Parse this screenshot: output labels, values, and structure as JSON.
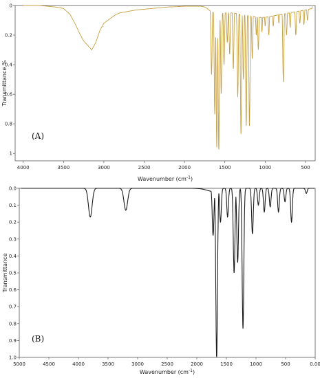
{
  "chart_data": [
    {
      "type": "line",
      "panel_label": "(A)",
      "xlabel_main": "Wavenumber (cm",
      "xlabel_sup": "-1",
      "xlabel_end": ")",
      "ylabel": "Transmittance %",
      "xlim": [
        4100,
        380
      ],
      "ylim": [
        0,
        1.05
      ],
      "x_reversed": true,
      "y_inverted": true,
      "grid": false,
      "color": "#c8a040",
      "xticks": [
        4000,
        3500,
        3000,
        2500,
        2000,
        1500,
        1000,
        500
      ],
      "xtick_labels": [
        "4000",
        "3500",
        "3000",
        "2500",
        "2000",
        "1500",
        "1000",
        "500"
      ],
      "yticks": [
        0,
        0.2,
        0.4,
        0.6,
        0.8,
        1
      ],
      "ytick_labels": [
        "0",
        "0.2",
        "0.4",
        "0.6",
        "0.8",
        "1"
      ],
      "baseline": [
        [
          4000,
          0.0
        ],
        [
          3800,
          0.0
        ],
        [
          3600,
          0.01
        ],
        [
          3500,
          0.02
        ],
        [
          3420,
          0.06
        ],
        [
          3350,
          0.13
        ],
        [
          3300,
          0.19
        ],
        [
          3250,
          0.24
        ],
        [
          3200,
          0.27
        ],
        [
          3150,
          0.3
        ],
        [
          3100,
          0.25
        ],
        [
          3050,
          0.17
        ],
        [
          3000,
          0.12
        ],
        [
          2950,
          0.1
        ],
        [
          2900,
          0.08
        ],
        [
          2850,
          0.06
        ],
        [
          2800,
          0.05
        ],
        [
          2700,
          0.04
        ],
        [
          2600,
          0.03
        ],
        [
          2500,
          0.025
        ],
        [
          2400,
          0.02
        ],
        [
          2300,
          0.015
        ],
        [
          2200,
          0.01
        ],
        [
          2100,
          0.008
        ],
        [
          2000,
          0.005
        ],
        [
          1900,
          0.005
        ],
        [
          1800,
          0.005
        ],
        [
          1750,
          0.01
        ],
        [
          1720,
          0.02
        ],
        [
          1700,
          0.03
        ],
        [
          1600,
          0.06
        ],
        [
          1500,
          0.05
        ],
        [
          1400,
          0.05
        ],
        [
          1300,
          0.06
        ],
        [
          1200,
          0.07
        ],
        [
          1100,
          0.08
        ],
        [
          1000,
          0.08
        ],
        [
          900,
          0.07
        ],
        [
          800,
          0.06
        ],
        [
          700,
          0.05
        ],
        [
          600,
          0.04
        ],
        [
          500,
          0.03
        ],
        [
          420,
          0.02
        ]
      ],
      "peaks": [
        {
          "x": 1665,
          "y": 0.47
        },
        {
          "x": 1625,
          "y": 0.74
        },
        {
          "x": 1600,
          "y": 0.96
        },
        {
          "x": 1575,
          "y": 0.98
        },
        {
          "x": 1545,
          "y": 0.6
        },
        {
          "x": 1510,
          "y": 0.4
        },
        {
          "x": 1470,
          "y": 0.25
        },
        {
          "x": 1440,
          "y": 0.33
        },
        {
          "x": 1395,
          "y": 0.43
        },
        {
          "x": 1340,
          "y": 0.62
        },
        {
          "x": 1300,
          "y": 0.87
        },
        {
          "x": 1270,
          "y": 0.5
        },
        {
          "x": 1235,
          "y": 0.82
        },
        {
          "x": 1195,
          "y": 0.82
        },
        {
          "x": 1160,
          "y": 0.36
        },
        {
          "x": 1110,
          "y": 0.2
        },
        {
          "x": 1085,
          "y": 0.3
        },
        {
          "x": 1040,
          "y": 0.18
        },
        {
          "x": 1000,
          "y": 0.14
        },
        {
          "x": 955,
          "y": 0.2
        },
        {
          "x": 900,
          "y": 0.14
        },
        {
          "x": 830,
          "y": 0.12
        },
        {
          "x": 775,
          "y": 0.52
        },
        {
          "x": 735,
          "y": 0.2
        },
        {
          "x": 690,
          "y": 0.15
        },
        {
          "x": 620,
          "y": 0.2
        },
        {
          "x": 570,
          "y": 0.12
        },
        {
          "x": 520,
          "y": 0.13
        },
        {
          "x": 475,
          "y": 0.1
        }
      ]
    },
    {
      "type": "line",
      "panel_label": "(B)",
      "xlabel_main": "Wavenumber (cm",
      "xlabel_sup": "-1",
      "xlabel_end": ")",
      "ylabel": "Transmittance",
      "xlim": [
        5000,
        0
      ],
      "ylim": [
        0,
        1.0
      ],
      "x_reversed": true,
      "y_inverted": true,
      "grid": false,
      "color": "#1a1a1a",
      "xticks": [
        5000,
        4500,
        4000,
        3500,
        3000,
        2500,
        2000,
        1500,
        1000,
        500,
        0
      ],
      "xtick_labels": [
        "5000",
        "4500",
        "4000",
        "3500",
        "3000",
        "2500",
        "2000",
        "1500",
        "1000",
        "500",
        "0.00"
      ],
      "yticks": [
        0,
        0.1,
        0.2,
        0.3,
        0.4,
        0.5,
        0.6,
        0.7,
        0.8,
        0.9,
        1.0
      ],
      "ytick_labels": [
        "0.0",
        "0.1",
        "0.2",
        "0.3",
        "0.4",
        "0.5",
        "0.6",
        "0.7",
        "0.8",
        "0.9",
        "1.0"
      ],
      "peaks": [
        {
          "x": 3800,
          "y": 0.17
        },
        {
          "x": 3200,
          "y": 0.13
        },
        {
          "x": 1725,
          "y": 0.28
        },
        {
          "x": 1665,
          "y": 1.0
        },
        {
          "x": 1600,
          "y": 0.2
        },
        {
          "x": 1480,
          "y": 0.17
        },
        {
          "x": 1370,
          "y": 0.5
        },
        {
          "x": 1310,
          "y": 0.44
        },
        {
          "x": 1220,
          "y": 0.83
        },
        {
          "x": 1060,
          "y": 0.27
        },
        {
          "x": 960,
          "y": 0.1
        },
        {
          "x": 860,
          "y": 0.14
        },
        {
          "x": 760,
          "y": 0.11
        },
        {
          "x": 620,
          "y": 0.14
        },
        {
          "x": 510,
          "y": 0.08
        },
        {
          "x": 400,
          "y": 0.2
        },
        {
          "x": 150,
          "y": 0.03
        }
      ]
    }
  ]
}
